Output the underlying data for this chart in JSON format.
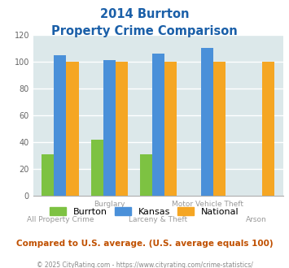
{
  "title_line1": "2014 Burrton",
  "title_line2": "Property Crime Comparison",
  "categories": [
    "All Property Crime",
    "Burglary",
    "Larceny & Theft",
    "Motor Vehicle Theft",
    "Arson"
  ],
  "top_labels": [
    "",
    "Burglary",
    "",
    "Motor Vehicle Theft",
    ""
  ],
  "bottom_labels": [
    "All Property Crime",
    "",
    "Larceny & Theft",
    "",
    "Arson"
  ],
  "burrton": [
    31,
    42,
    31,
    0,
    0
  ],
  "kansas": [
    105,
    101,
    106,
    110,
    0
  ],
  "national": [
    100,
    100,
    100,
    100,
    100
  ],
  "bar_colors": {
    "burrton": "#7dc242",
    "kansas": "#4a90d9",
    "national": "#f5a623"
  },
  "ylim": [
    0,
    120
  ],
  "yticks": [
    0,
    20,
    40,
    60,
    80,
    100,
    120
  ],
  "plot_bg": "#dce8ea",
  "title_color": "#1a5fa8",
  "legend_note": "Compared to U.S. average. (U.S. average equals 100)",
  "footer": "© 2025 CityRating.com - https://www.cityrating.com/crime-statistics/",
  "legend_labels": [
    "Burrton",
    "Kansas",
    "National"
  ],
  "note_color": "#c05000",
  "footer_color": "#888888",
  "label_color": "#999999"
}
